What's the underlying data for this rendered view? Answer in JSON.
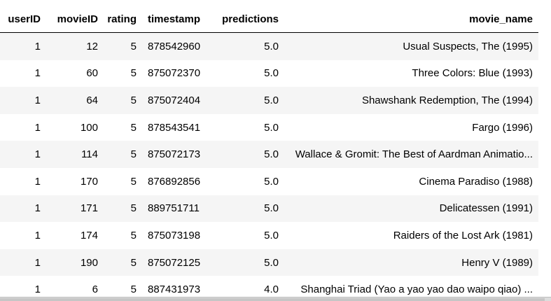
{
  "table": {
    "columns": [
      "userID",
      "movieID",
      "rating",
      "timestamp",
      "predictions",
      "movie_name"
    ],
    "rows": [
      [
        "1",
        "12",
        "5",
        "878542960",
        "5.0",
        "Usual Suspects, The (1995)"
      ],
      [
        "1",
        "60",
        "5",
        "875072370",
        "5.0",
        "Three Colors: Blue (1993)"
      ],
      [
        "1",
        "64",
        "5",
        "875072404",
        "5.0",
        "Shawshank Redemption, The (1994)"
      ],
      [
        "1",
        "100",
        "5",
        "878543541",
        "5.0",
        "Fargo (1996)"
      ],
      [
        "1",
        "114",
        "5",
        "875072173",
        "5.0",
        "Wallace & Gromit: The Best of Aardman Animatio..."
      ],
      [
        "1",
        "170",
        "5",
        "876892856",
        "5.0",
        "Cinema Paradiso (1988)"
      ],
      [
        "1",
        "171",
        "5",
        "889751711",
        "5.0",
        "Delicatessen (1991)"
      ],
      [
        "1",
        "174",
        "5",
        "875073198",
        "5.0",
        "Raiders of the Lost Ark (1981)"
      ],
      [
        "1",
        "190",
        "5",
        "875072125",
        "5.0",
        "Henry V (1989)"
      ],
      [
        "1",
        "6",
        "5",
        "887431973",
        "4.0",
        "Shanghai Triad (Yao a yao yao dao waipo qiao) ..."
      ]
    ]
  },
  "colors": {
    "stripe": "#f5f5f5",
    "header_rule": "#000000",
    "scrollbar": "#dcdcdc"
  }
}
